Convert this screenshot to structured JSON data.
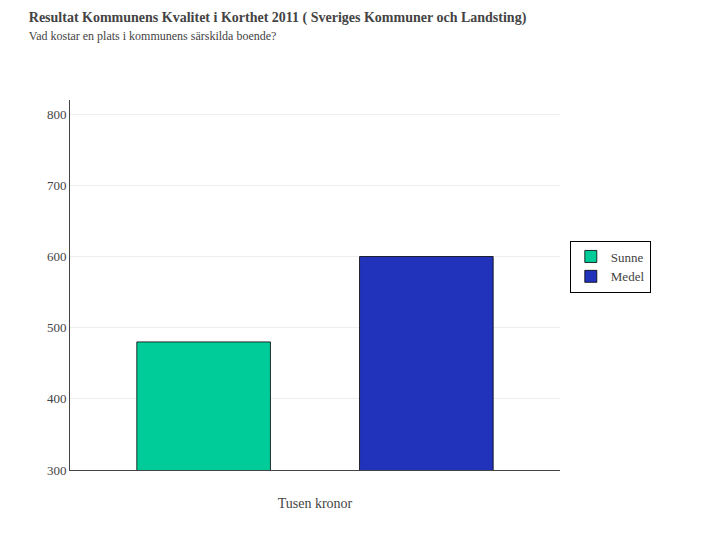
{
  "chart_data": {
    "type": "bar",
    "title": "Resultat Kommunens Kvalitet i Korthet 2011 ( Sveriges Kommuner och Landsting)",
    "subtitle": "Vad kostar en plats i kommunens särskilda boende?",
    "xlabel": "Tusen kronor",
    "categories": [
      "Sunne",
      "Medel"
    ],
    "values": [
      480,
      600
    ],
    "colors": [
      "#00CC99",
      "#2233BB"
    ],
    "ylim": [
      300,
      820
    ],
    "yticks": [
      300,
      400,
      500,
      600,
      700,
      800
    ],
    "grid": true,
    "legend": "right",
    "tick_labels": "y"
  }
}
